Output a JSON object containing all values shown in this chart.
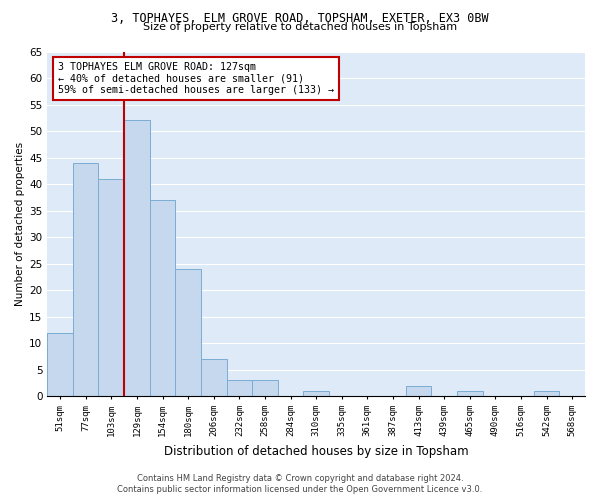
{
  "title1": "3, TOPHAYES, ELM GROVE ROAD, TOPSHAM, EXETER, EX3 0BW",
  "title2": "Size of property relative to detached houses in Topsham",
  "xlabel": "Distribution of detached houses by size in Topsham",
  "ylabel": "Number of detached properties",
  "categories": [
    "51sqm",
    "77sqm",
    "103sqm",
    "129sqm",
    "154sqm",
    "180sqm",
    "206sqm",
    "232sqm",
    "258sqm",
    "284sqm",
    "310sqm",
    "335sqm",
    "361sqm",
    "387sqm",
    "413sqm",
    "439sqm",
    "465sqm",
    "490sqm",
    "516sqm",
    "542sqm",
    "568sqm"
  ],
  "values": [
    12,
    44,
    41,
    52,
    37,
    24,
    7,
    3,
    3,
    0,
    1,
    0,
    0,
    0,
    2,
    0,
    1,
    0,
    0,
    1,
    0
  ],
  "bar_color": "#c5d8ee",
  "bar_edge_color": "#7aadd4",
  "vline_color": "#c00000",
  "annotation_text": "3 TOPHAYES ELM GROVE ROAD: 127sqm\n← 40% of detached houses are smaller (91)\n59% of semi-detached houses are larger (133) →",
  "annotation_box_edge": "#c00000",
  "background_color": "#deeaf7",
  "grid_color": "#ffffff",
  "footer1": "Contains HM Land Registry data © Crown copyright and database right 2024.",
  "footer2": "Contains public sector information licensed under the Open Government Licence v3.0.",
  "ylim": [
    0,
    65
  ],
  "yticks": [
    0,
    5,
    10,
    15,
    20,
    25,
    30,
    35,
    40,
    45,
    50,
    55,
    60,
    65
  ]
}
